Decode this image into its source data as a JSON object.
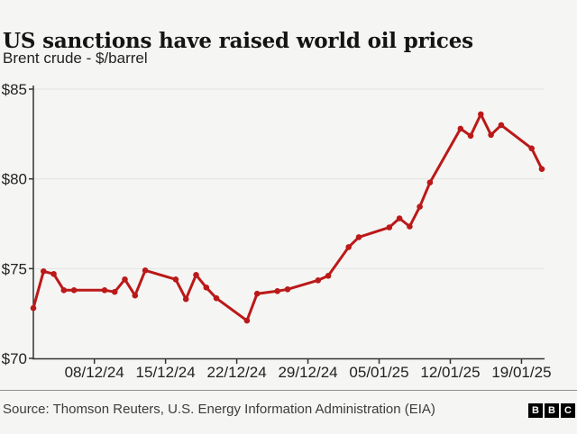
{
  "header": {
    "title": "US sanctions have raised world oil prices",
    "subtitle": "Brent crude - $/barrel"
  },
  "chart_data": {
    "type": "line",
    "title": "US sanctions have raised world oil prices",
    "subtitle": "Brent crude - $/barrel",
    "ylabel": "$/barrel",
    "xlabel": "",
    "ylim": [
      70,
      85
    ],
    "grid": true,
    "legend_position": "none",
    "line_color": "#bb1919",
    "marker": "circle",
    "axis_color": "#333333",
    "grid_color": "#e4e4e2",
    "tick_label_color": "#222222",
    "yticks": [
      70,
      75,
      80,
      85
    ],
    "ytick_labels": [
      "$70",
      "$75",
      "$80",
      "$85"
    ],
    "xticks": [
      "08/12/24",
      "15/12/24",
      "22/12/24",
      "29/12/24",
      "05/01/25",
      "12/01/25",
      "19/01/25"
    ],
    "x": [
      "02/12/24",
      "03/12/24",
      "04/12/24",
      "05/12/24",
      "06/12/24",
      "09/12/24",
      "10/12/24",
      "11/12/24",
      "12/12/24",
      "13/12/24",
      "16/12/24",
      "17/12/24",
      "18/12/24",
      "19/12/24",
      "20/12/24",
      "23/12/24",
      "24/12/24",
      "26/12/24",
      "27/12/24",
      "30/12/24",
      "31/12/24",
      "02/01/25",
      "03/01/25",
      "06/01/25",
      "07/01/25",
      "08/01/25",
      "09/01/25",
      "10/01/25",
      "13/01/25",
      "14/01/25",
      "15/01/25",
      "16/01/25",
      "17/01/25",
      "20/01/25",
      "21/01/25"
    ],
    "values": [
      72.8,
      74.85,
      74.7,
      73.8,
      73.8,
      73.8,
      73.7,
      74.4,
      73.5,
      74.9,
      74.4,
      73.3,
      74.65,
      73.95,
      73.35,
      72.1,
      73.6,
      73.75,
      73.85,
      74.35,
      74.6,
      76.2,
      76.75,
      77.3,
      77.8,
      77.35,
      78.45,
      79.8,
      82.8,
      82.4,
      83.6,
      82.45,
      83.0,
      81.7,
      80.55
    ]
  },
  "footer": {
    "source": "Source: Thomson Reuters, U.S. Energy Information Administration (EIA)",
    "logo": [
      "B",
      "B",
      "C"
    ]
  }
}
